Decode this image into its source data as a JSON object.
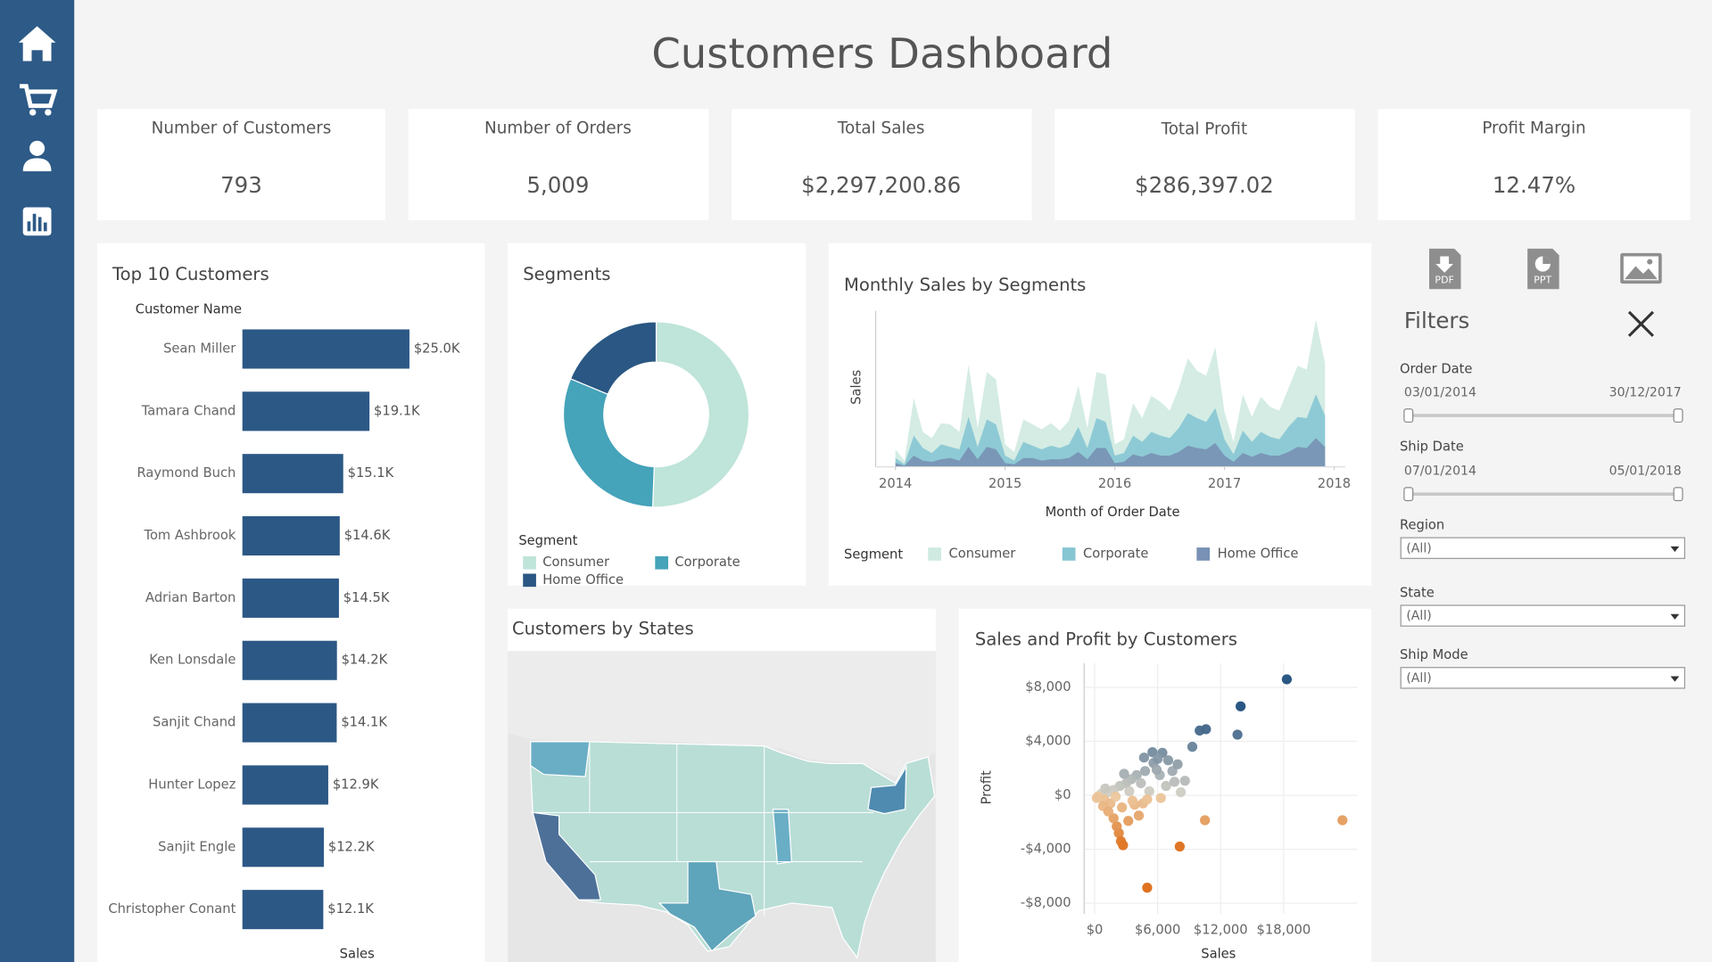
{
  "title": "Customers Dashboard",
  "kpis": [
    {
      "label": "Number of Customers",
      "value": "793"
    },
    {
      "label": "Number of Orders",
      "value": "5,009"
    },
    {
      "label": "Total Sales",
      "value": "$2,297,200.86"
    },
    {
      "label": "Total Profit",
      "value": "$286,397.02"
    },
    {
      "label": "Profit Margin",
      "value": "12.47%"
    }
  ],
  "exports": [
    "PDF",
    "PPT"
  ],
  "filters": {
    "title": "Filters",
    "date_ranges": [
      {
        "label": "Order Date",
        "start": "03/01/2014",
        "end": "30/12/2017"
      },
      {
        "label": "Ship Date",
        "start": "07/01/2014",
        "end": "05/01/2018"
      }
    ],
    "dropdowns": [
      {
        "label": "Region",
        "value": "(All)"
      },
      {
        "label": "State",
        "value": "(All)"
      },
      {
        "label": "Ship Mode",
        "value": "(All)"
      }
    ]
  },
  "chart_data": [
    {
      "type": "bar",
      "orientation": "horizontal",
      "title": "Top 10 Customers",
      "y_label": "Customer Name",
      "x_label": "Sales",
      "categories": [
        "Sean Miller",
        "Tamara Chand",
        "Raymond Buch",
        "Tom Ashbrook",
        "Adrian Barton",
        "Ken Lonsdale",
        "Sanjit Chand",
        "Hunter Lopez",
        "Sanjit Engle",
        "Christopher Conant"
      ],
      "values": [
        25043,
        19052,
        15117,
        14596,
        14474,
        14175,
        14142,
        12873,
        12209,
        12129
      ],
      "value_labels": [
        "$25.0K",
        "$19.1K",
        "$15.1K",
        "$14.6K",
        "$14.5K",
        "$14.2K",
        "$14.1K",
        "$12.9K",
        "$12.2K",
        "$12.1K"
      ],
      "color": "#2c5886"
    },
    {
      "type": "pie",
      "donut": true,
      "title": "Segments",
      "legend_title": "Segment",
      "categories": [
        "Consumer",
        "Corporate",
        "Home Office"
      ],
      "values": [
        50.6,
        30.7,
        18.7
      ],
      "colors": [
        "#bfe4d9",
        "#45a3ba",
        "#2a5783"
      ]
    },
    {
      "type": "area",
      "stacked": true,
      "title": "Monthly Sales by Segments",
      "y_label": "Sales",
      "x_label": "Month of Order Date",
      "legend_title": "Segment",
      "x": [
        2014,
        2014.083,
        2014.167,
        2014.25,
        2014.333,
        2014.417,
        2014.5,
        2014.583,
        2014.667,
        2014.75,
        2014.833,
        2014.917,
        2015,
        2015.083,
        2015.167,
        2015.25,
        2015.333,
        2015.417,
        2015.5,
        2015.583,
        2015.667,
        2015.75,
        2015.833,
        2015.917,
        2016,
        2016.083,
        2016.167,
        2016.25,
        2016.333,
        2016.417,
        2016.5,
        2016.583,
        2016.667,
        2016.75,
        2016.833,
        2016.917,
        2017,
        2017.083,
        2017.167,
        2017.25,
        2017.333,
        2017.417,
        2017.5,
        2017.583,
        2017.667,
        2017.75,
        2017.833,
        2017.917
      ],
      "xlim": [
        2013.8,
        2018.1
      ],
      "xticks": [
        2014,
        2015,
        2016,
        2017,
        2018
      ],
      "ylim": [
        0,
        125000
      ],
      "series": [
        {
          "name": "Consumer",
          "color": "#cfeae1",
          "values": [
            7000,
            3000,
            30000,
            13000,
            12000,
            17000,
            18000,
            14000,
            42000,
            15000,
            38000,
            36000,
            9000,
            7000,
            18000,
            17000,
            16000,
            18000,
            14000,
            19000,
            33000,
            16000,
            37000,
            38000,
            9000,
            11000,
            26000,
            19000,
            29000,
            27000,
            22000,
            32000,
            44000,
            38000,
            37000,
            49000,
            22000,
            10000,
            29000,
            20000,
            28000,
            24000,
            23000,
            31000,
            41000,
            39000,
            60000,
            42000
          ]
        },
        {
          "name": "Corporate",
          "color": "#86c6d3",
          "values": [
            4000,
            1000,
            16000,
            10000,
            7000,
            12000,
            9000,
            9000,
            24000,
            10000,
            22000,
            20000,
            6000,
            3000,
            13000,
            10000,
            9000,
            11000,
            9000,
            11000,
            20000,
            9000,
            24000,
            21000,
            6000,
            7000,
            15000,
            12000,
            17000,
            16000,
            14000,
            19000,
            26000,
            24000,
            22000,
            28000,
            13000,
            6000,
            18000,
            12000,
            17000,
            15000,
            13000,
            20000,
            24000,
            24000,
            35000,
            25000
          ]
        },
        {
          "name": "Home Office",
          "color": "#7891b4",
          "values": [
            3000,
            1000,
            9000,
            5000,
            4000,
            6000,
            7000,
            5000,
            16000,
            6000,
            16000,
            14000,
            3000,
            2000,
            7000,
            7000,
            5000,
            6000,
            6000,
            7000,
            12000,
            6000,
            15000,
            15000,
            3000,
            4000,
            10000,
            8000,
            11000,
            9000,
            9000,
            12000,
            17000,
            15000,
            14000,
            19000,
            9000,
            4000,
            11000,
            8000,
            11000,
            9000,
            9000,
            12000,
            16000,
            15000,
            23000,
            16000
          ]
        }
      ]
    },
    {
      "type": "map",
      "title": "Customers by States"
    },
    {
      "type": "scatter",
      "title": "Sales and Profit by Customers",
      "x_label": "Sales",
      "y_label": "Profit",
      "x": [
        18300,
        13900,
        13600,
        10600,
        10000,
        6450,
        8600,
        8200,
        10500,
        23600,
        8100,
        5000,
        2700,
        2300,
        2500,
        2100,
        1800,
        3200,
        4200,
        4600,
        5200,
        6200,
        7400,
        7000,
        5600,
        5900,
        4800,
        4000,
        3500,
        3000,
        2400,
        1800,
        1200,
        600,
        300,
        900,
        1500,
        2600,
        3800,
        5000,
        6800,
        7600,
        4400,
        3300,
        2000,
        1000,
        2800,
        4700,
        5500,
        6000,
        800,
        1300,
        3600,
        6300,
        7900,
        9300,
        200
      ],
      "values": [
        8600,
        6600,
        4500,
        4900,
        4800,
        3150,
        1080,
        230,
        -1850,
        -1850,
        -3800,
        -6850,
        -3700,
        -2800,
        -3400,
        -2300,
        -1700,
        -1900,
        -1500,
        -600,
        300,
        1500,
        1800,
        2600,
        2400,
        1900,
        1800,
        1500,
        1200,
        900,
        700,
        400,
        200,
        100,
        -100,
        -300,
        -600,
        -900,
        -700,
        -300,
        700,
        1000,
        900,
        300,
        -100,
        500,
        1600,
        2800,
        3200,
        2700,
        -800,
        -1200,
        -400,
        -200,
        2300,
        3600,
        -200
      ],
      "xlim": [
        -1000,
        25000
      ],
      "xticks": [
        {
          "value": 0,
          "label": "$0"
        },
        {
          "value": 6000,
          "label": "$6,000"
        },
        {
          "value": 12000,
          "label": "$12,000"
        },
        {
          "value": 18000,
          "label": "$18,000"
        }
      ],
      "ylim": [
        -8800,
        9800
      ],
      "yticks": [
        {
          "value": 8000,
          "label": "$8,000"
        },
        {
          "value": 4000,
          "label": "$4,000"
        },
        {
          "value": 0,
          "label": "$0"
        },
        {
          "value": -4000,
          "label": "-$4,000"
        },
        {
          "value": -8000,
          "label": "-$8,000"
        }
      ],
      "grid": true
    }
  ]
}
